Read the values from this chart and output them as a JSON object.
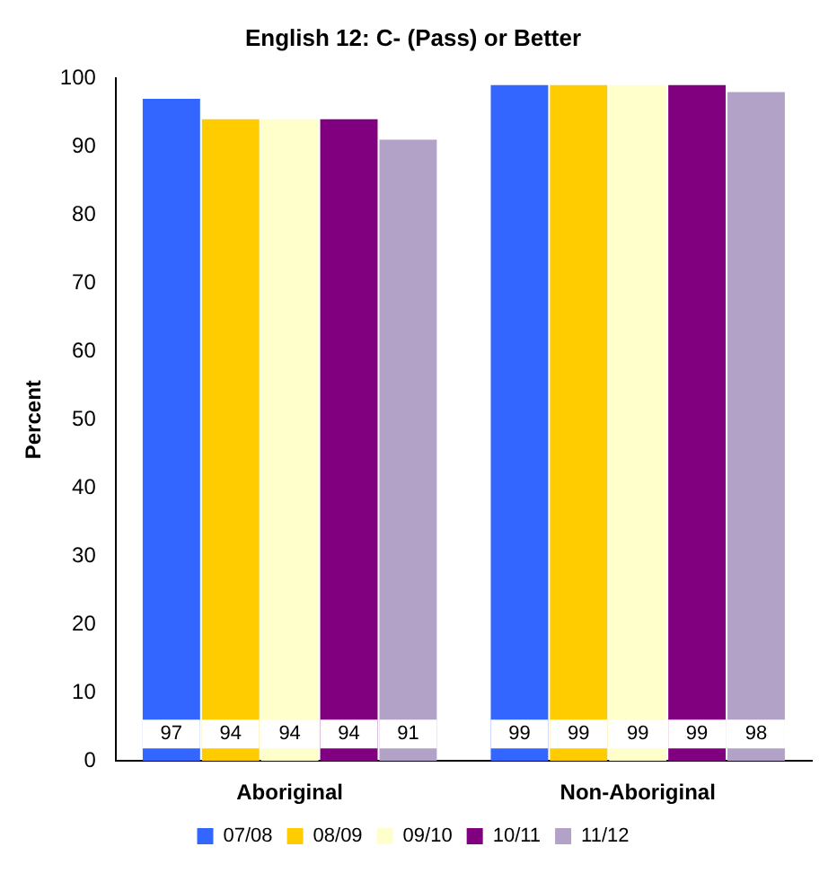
{
  "chart_data": {
    "type": "bar",
    "title": "English 12: C- (Pass) or Better",
    "ylabel": "Percent",
    "categories": [
      "Aboriginal",
      "Non-Aboriginal"
    ],
    "series": [
      {
        "name": "07/08",
        "color": "#3366ff",
        "values": [
          97,
          99
        ]
      },
      {
        "name": "08/09",
        "color": "#ffcc00",
        "values": [
          94,
          99
        ]
      },
      {
        "name": "09/10",
        "color": "#ffffcc",
        "values": [
          94,
          99
        ]
      },
      {
        "name": "10/11",
        "color": "#800080",
        "values": [
          94,
          99
        ]
      },
      {
        "name": "11/12",
        "color": "#b3a2c7",
        "values": [
          91,
          98
        ]
      }
    ],
    "ylim": [
      0,
      100
    ],
    "yticks": [
      0,
      10,
      20,
      30,
      40,
      50,
      60,
      70,
      80,
      90,
      100
    ],
    "grid": false,
    "legend": "bottom",
    "data_labels": true
  }
}
